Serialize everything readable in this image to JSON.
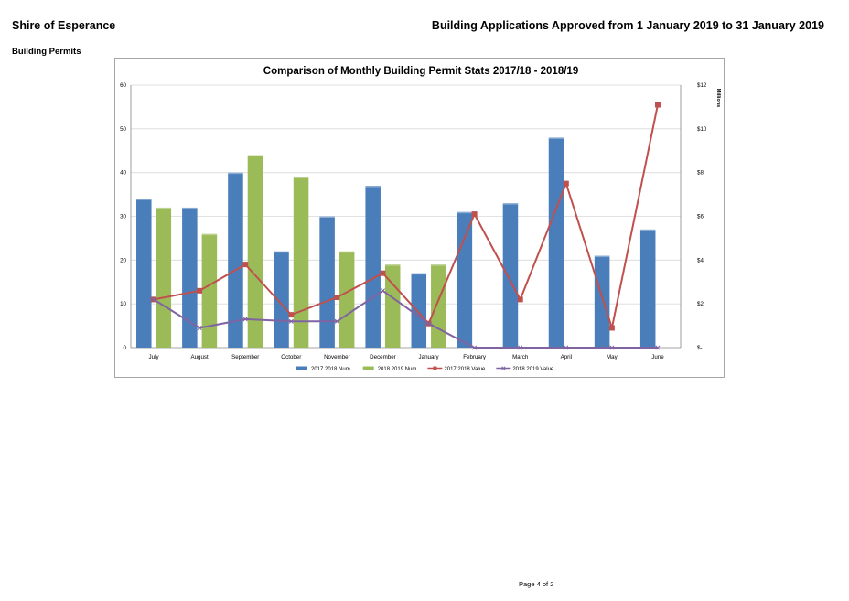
{
  "header": {
    "organization": "Shire of Esperance",
    "report_title": "Building Applications Approved from 1 January 2019 to 31 January 2019",
    "section": "Building Permits"
  },
  "footer": {
    "page": "Page 4 of 2"
  },
  "chart_data": {
    "type": "bar",
    "title": "Comparison of Monthly Building Permit Stats 2017/18 - 2018/19",
    "categories": [
      "July",
      "August",
      "September",
      "October",
      "November",
      "December",
      "January",
      "February",
      "March",
      "April",
      "May",
      "June"
    ],
    "ylim": [
      0,
      60
    ],
    "y_ticks": [
      0,
      10,
      20,
      30,
      40,
      50,
      60
    ],
    "y2lim": [
      0,
      12
    ],
    "y2_ticks": [
      "$-",
      "$2",
      "$4",
      "$6",
      "$8",
      "$10",
      "$12"
    ],
    "y2_unit": "Millions",
    "grid": true,
    "legend_position": "bottom",
    "series": [
      {
        "name": "2017 2018 Num",
        "kind": "bar",
        "axis": "left",
        "color": "#4a7ebb",
        "values": [
          34,
          32,
          40,
          22,
          30,
          37,
          17,
          31,
          33,
          48,
          21,
          27
        ]
      },
      {
        "name": "2018 2019 Num",
        "kind": "bar",
        "axis": "left",
        "color": "#9bbb59",
        "values": [
          32,
          26,
          44,
          39,
          22,
          19,
          19,
          null,
          null,
          null,
          null,
          null
        ]
      },
      {
        "name": "2017 2018 Value",
        "kind": "line",
        "axis": "right",
        "color": "#c0504d",
        "marker": "square",
        "values": [
          2.2,
          2.6,
          3.8,
          1.5,
          2.3,
          3.4,
          1.1,
          6.1,
          2.2,
          7.5,
          0.9,
          11.1
        ]
      },
      {
        "name": "2018 2019 Value",
        "kind": "line",
        "axis": "right",
        "color": "#8064a2",
        "marker": "x",
        "values": [
          2.2,
          0.9,
          1.3,
          1.2,
          1.2,
          2.6,
          1.1,
          0,
          0,
          0,
          0,
          0
        ]
      }
    ]
  }
}
